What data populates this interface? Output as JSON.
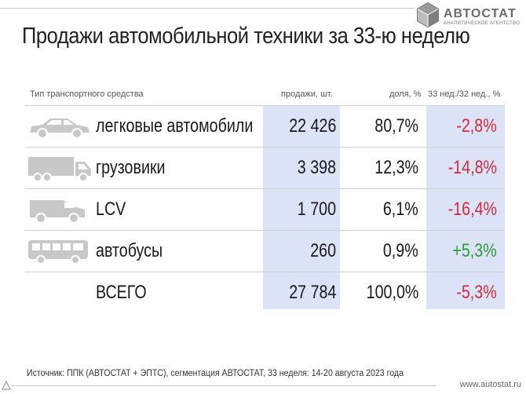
{
  "brand": {
    "name": "АВТОСТАТ",
    "subtitle": "аналитическое агентство",
    "logo_icon": "hexagon-cube-logo-icon",
    "color": "#6b6b6b"
  },
  "title": "Продажи автомобильной техники за 33-ю неделю",
  "table": {
    "headers": {
      "type": "Тип транспортного средства",
      "sales": "продажи, шт.",
      "share": "доля, %",
      "change": "33 нед./32 нед., %"
    },
    "rows": [
      {
        "icon": "passenger-car-icon",
        "name": "легковые автомобили",
        "sales": "22 426",
        "share": "80,7%",
        "change": "-2,8%",
        "change_sign": "neg"
      },
      {
        "icon": "truck-icon",
        "name": "грузовики",
        "sales": "3 398",
        "share": "12,3%",
        "change": "-14,8%",
        "change_sign": "neg"
      },
      {
        "icon": "van-icon",
        "name": "LCV",
        "sales": "1 700",
        "share": "6,1%",
        "change": "-16,4%",
        "change_sign": "neg"
      },
      {
        "icon": "bus-icon",
        "name": "автобусы",
        "sales": "260",
        "share": "0,9%",
        "change": "+5,3%",
        "change_sign": "pos"
      },
      {
        "icon": "",
        "name": "ВСЕГО",
        "sales": "27 784",
        "share": "100,0%",
        "change": "-5,3%",
        "change_sign": "neg"
      }
    ]
  },
  "colors": {
    "band": "#dde3f6",
    "negative": "#d42a3c",
    "positive": "#2e9a3a",
    "icon_gray": "#c8c8c8"
  },
  "footer": {
    "source": "Источник: ППК (АВТОСТАТ + ЭПТС), сегментация АВТОСТАТ, 33 неделя: 14-20 августа 2023 года",
    "url": "www.autostat.ru"
  }
}
